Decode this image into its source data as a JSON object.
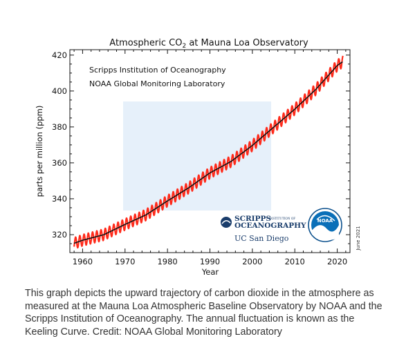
{
  "chart_data": {
    "type": "line",
    "title": "Atmospheric CO",
    "title_sub": "2",
    "title_rest": " at Mauna Loa Observatory",
    "xlabel": "Year",
    "ylabel": "parts per million (ppm)",
    "xlim": [
      1957,
      2023
    ],
    "ylim": [
      310,
      423
    ],
    "xticks": [
      1960,
      1970,
      1980,
      1990,
      2000,
      2010,
      2020
    ],
    "yticks": [
      320,
      340,
      360,
      380,
      400,
      420
    ],
    "annotations": [
      "Scripps Institution of Oceanography",
      "NOAA Global Monitoring Laboratory"
    ],
    "date_note": "June 2021",
    "series": [
      {
        "kind": "monthly",
        "color": "#ff2a1a",
        "seasonal_amplitude": 3.2,
        "x": [
          1958,
          1960,
          1965,
          1970,
          1975,
          1980,
          1985,
          1990,
          1995,
          2000,
          2005,
          2010,
          2015,
          2020,
          2021.4
        ],
        "values": [
          315.2,
          316.9,
          320.0,
          325.7,
          331.1,
          338.8,
          346.1,
          354.4,
          360.8,
          369.7,
          379.8,
          389.9,
          401.0,
          414.2,
          416.5
        ]
      },
      {
        "kind": "trend",
        "color": "#111111",
        "x": [
          1958,
          1960,
          1965,
          1970,
          1975,
          1980,
          1985,
          1990,
          1995,
          2000,
          2005,
          2010,
          2015,
          2020,
          2021.4
        ],
        "values": [
          315.2,
          316.9,
          320.0,
          325.7,
          331.1,
          338.8,
          346.1,
          354.4,
          360.8,
          369.7,
          379.8,
          389.9,
          401.0,
          414.2,
          416.5
        ]
      }
    ]
  },
  "logos": {
    "scripps_line1": "SCRIPPS",
    "scripps_small": "INSTITUTION OF",
    "scripps_line2": "OCEANOGRAPHY",
    "ucsd": "UC San Diego",
    "noaa": "NOAA"
  },
  "colors": {
    "shade": "#e6f0fa",
    "noaa_blue": "#0a6fb8",
    "scripps_blue": "#1a3d6b"
  },
  "caption": "This graph depicts the upward trajectory of carbon dioxide in the atmosphere as measured at the Mauna Loa Atmospheric Baseline Observatory by NOAA and the Scripps Institution of Oceanography. The annual fluctuation is known as the Keeling Curve. Credit: NOAA Global Monitoring Laboratory"
}
